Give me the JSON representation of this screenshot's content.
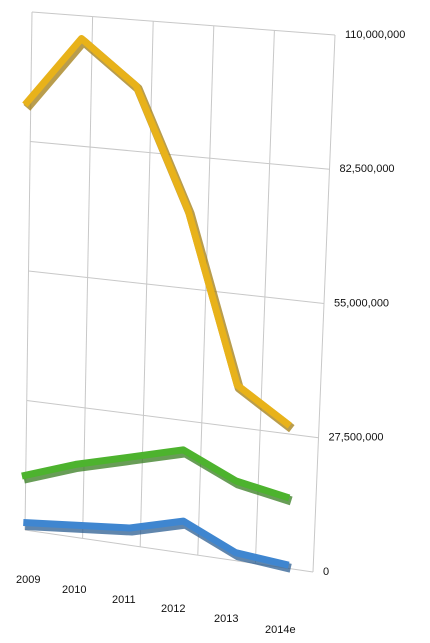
{
  "chart_data": {
    "type": "line",
    "categories": [
      "2009",
      "2010",
      "2011",
      "2012",
      "2013",
      "2014e"
    ],
    "series": [
      {
        "color": "#e8b21a",
        "values": [
          92000000,
          107000000,
          98000000,
          73000000,
          38000000,
          31000000
        ]
      },
      {
        "color": "#4db32e",
        "values": [
          14000000,
          18000000,
          21000000,
          24000000,
          19000000,
          17000000
        ]
      },
      {
        "color": "#3f86d0",
        "values": [
          5000000,
          6000000,
          7000000,
          10000000,
          5000000,
          4000000
        ]
      }
    ],
    "ylim": [
      0,
      110000000
    ],
    "yticks": [
      0,
      {
        "value": 27500000,
        "label": "27,500,000"
      },
      {
        "value": 55000000,
        "label": "55,000,000"
      },
      {
        "value": 82500000,
        "label": "82,500,000"
      },
      {
        "value": 110000000,
        "label": "110,000,000"
      }
    ],
    "grid": true
  }
}
